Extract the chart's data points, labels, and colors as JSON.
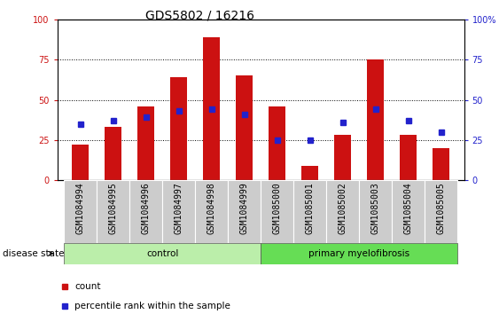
{
  "title": "GDS5802 / 16216",
  "samples": [
    "GSM1084994",
    "GSM1084995",
    "GSM1084996",
    "GSM1084997",
    "GSM1084998",
    "GSM1084999",
    "GSM1085000",
    "GSM1085001",
    "GSM1085002",
    "GSM1085003",
    "GSM1085004",
    "GSM1085005"
  ],
  "counts": [
    22,
    33,
    46,
    64,
    89,
    65,
    46,
    9,
    28,
    75,
    28,
    20
  ],
  "percentiles": [
    35,
    37,
    39,
    43,
    44,
    41,
    25,
    25,
    36,
    44,
    37,
    30
  ],
  "n_control": 6,
  "bar_color": "#cc1111",
  "dot_color": "#2222cc",
  "ylim": [
    0,
    100
  ],
  "yticks": [
    0,
    25,
    50,
    75,
    100
  ],
  "tick_area_color": "#cccccc",
  "control_color": "#bbeeaa",
  "mf_color": "#66dd55",
  "grid_color": "#000000",
  "left_ytick_color": "#cc1111",
  "right_ytick_color": "#2222cc",
  "right_yticklabels": [
    "0",
    "25",
    "50",
    "75",
    "100%"
  ],
  "title_fontsize": 10,
  "tick_fontsize": 7,
  "legend_fontsize": 7.5,
  "bar_width": 0.5
}
